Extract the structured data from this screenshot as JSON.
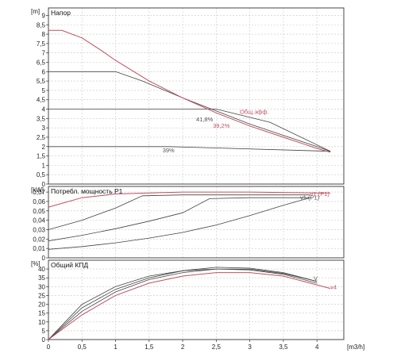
{
  "chart_data": [
    {
      "type": "line",
      "title": "Напор",
      "ylabel": "[m]",
      "xlabel": "",
      "xlim": [
        0,
        4.4
      ],
      "ylim": [
        0,
        9.4
      ],
      "yticks": [
        0,
        0.5,
        1,
        1.5,
        2,
        2.5,
        3,
        3.5,
        4,
        4.5,
        5,
        5.5,
        6,
        6.5,
        7,
        7.5,
        8,
        8.5,
        9
      ],
      "ytick_labels": [
        "0",
        "0,5",
        "1",
        "1,5",
        "2",
        "2,5",
        "3",
        "3,5",
        "4",
        "4,5",
        "5",
        "5,5",
        "6",
        "6,5",
        "7",
        "7,5",
        "8",
        "8,5",
        "9"
      ],
      "grid": true,
      "colors": {
        "dark": "#444444",
        "red": "#c05060"
      },
      "series": [
        {
          "style": "dark",
          "x": [
            0,
            1.8,
            4.2
          ],
          "y": [
            2.0,
            2.0,
            1.75
          ]
        },
        {
          "style": "dark",
          "x": [
            0,
            2.5,
            3.3,
            4.2
          ],
          "y": [
            4.0,
            4.0,
            3.3,
            1.75
          ]
        },
        {
          "style": "dark",
          "x": [
            0,
            1.0,
            1.4,
            2.0,
            2.5,
            3.0,
            3.5,
            4.0,
            4.2
          ],
          "y": [
            6.0,
            6.0,
            5.5,
            4.6,
            3.9,
            3.2,
            2.6,
            2.0,
            1.75
          ]
        },
        {
          "style": "red",
          "x": [
            0,
            0.2,
            0.5,
            0.8,
            1.0,
            1.5,
            2.0,
            2.5,
            3.0,
            3.5,
            4.0,
            4.2
          ],
          "y": [
            8.2,
            8.2,
            7.8,
            7.1,
            6.6,
            5.5,
            4.6,
            3.8,
            3.1,
            2.5,
            1.9,
            1.7
          ]
        }
      ],
      "annotations": [
        {
          "text": "Общ.эфф.",
          "x": 2.85,
          "y": 3.75,
          "style": "red"
        },
        {
          "text": "41,8%",
          "x": 2.2,
          "y": 3.35,
          "style": "dark"
        },
        {
          "text": "39,2%",
          "x": 2.45,
          "y": 3.0,
          "style": "red"
        },
        {
          "text": "39%",
          "x": 1.7,
          "y": 1.7,
          "style": "dark"
        }
      ]
    },
    {
      "type": "line",
      "title": "Потребл. мощность P1",
      "ylabel": "[kW]",
      "xlabel": "",
      "xlim": [
        0,
        4.4
      ],
      "ylim": [
        0,
        0.076
      ],
      "yticks": [
        0,
        0.01,
        0.02,
        0.03,
        0.04,
        0.05,
        0.06,
        0.07
      ],
      "ytick_labels": [
        "0",
        "0,01",
        "0,02",
        "0,03",
        "0,04",
        "0,05",
        "0,06",
        "0,07"
      ],
      "grid": true,
      "series": [
        {
          "style": "dark",
          "x": [
            0,
            0.5,
            1.0,
            1.5,
            2.0,
            2.5,
            3.0,
            3.5,
            3.9
          ],
          "y": [
            0.009,
            0.012,
            0.016,
            0.021,
            0.027,
            0.035,
            0.045,
            0.056,
            0.064
          ]
        },
        {
          "style": "dark",
          "x": [
            0,
            0.5,
            1.0,
            1.5,
            2.0,
            2.4,
            3.0,
            3.9
          ],
          "y": [
            0.018,
            0.024,
            0.031,
            0.039,
            0.048,
            0.063,
            0.064,
            0.064
          ]
        },
        {
          "style": "dark",
          "x": [
            0,
            0.5,
            1.0,
            1.4,
            2.0,
            3.9
          ],
          "y": [
            0.03,
            0.04,
            0.053,
            0.066,
            0.067,
            0.067
          ]
        },
        {
          "style": "red",
          "x": [
            0,
            0.5,
            1.0,
            1.5,
            2.0,
            3.0,
            4.0,
            4.2
          ],
          "y": [
            0.054,
            0.064,
            0.068,
            0.069,
            0.07,
            0.07,
            0.069,
            0.069
          ]
        }
      ],
      "annotations": [
        {
          "text": "v1 (P1)",
          "x": 3.9,
          "y": 0.066,
          "style": "red"
        },
        {
          "text": "v1 (P1)",
          "x": 3.75,
          "y": 0.062,
          "style": "dark"
        }
      ]
    },
    {
      "type": "line",
      "title": "Общий КПД",
      "ylabel": "[%]",
      "xlabel": "[m3/h]",
      "xlim": [
        0,
        4.4
      ],
      "ylim": [
        0,
        45
      ],
      "xticks": [
        0,
        0.5,
        1,
        1.5,
        2,
        2.5,
        3,
        3.5,
        4
      ],
      "xtick_labels": [
        "0",
        "0,5",
        "1",
        "1,5",
        "2",
        "2,5",
        "3",
        "3,5",
        "4"
      ],
      "yticks": [
        0,
        5,
        10,
        15,
        20,
        25,
        30,
        35,
        40
      ],
      "ytick_labels": [
        "0",
        "5",
        "10",
        "15",
        "20",
        "25",
        "30",
        "35",
        "40"
      ],
      "grid": true,
      "series": [
        {
          "style": "dark",
          "x": [
            0,
            0.25,
            0.5,
            1.0,
            1.5,
            2.0,
            2.5,
            3.0,
            3.5,
            4.0
          ],
          "y": [
            0,
            10,
            20,
            30,
            36,
            39,
            40,
            39.5,
            37,
            32
          ]
        },
        {
          "style": "dark",
          "x": [
            0,
            0.25,
            0.5,
            1.0,
            1.5,
            2.0,
            2.5,
            3.0,
            3.5,
            4.0
          ],
          "y": [
            0,
            9,
            18,
            28.5,
            35,
            39,
            41,
            40.5,
            38,
            33
          ]
        },
        {
          "style": "dark",
          "x": [
            0,
            0.25,
            0.5,
            1.0,
            1.5,
            2.0,
            2.5,
            3.0,
            3.5,
            4.0
          ],
          "y": [
            0,
            8,
            16,
            27,
            34,
            38,
            40,
            40,
            37.5,
            33
          ]
        },
        {
          "style": "red",
          "x": [
            0,
            0.25,
            0.5,
            1.0,
            1.5,
            2.0,
            2.5,
            3.0,
            3.5,
            4.0,
            4.2
          ],
          "y": [
            0,
            7,
            14,
            25,
            32,
            36,
            38,
            38,
            36,
            31,
            29
          ]
        }
      ],
      "annotations": [
        {
          "text": "V",
          "x": 3.95,
          "y": 33.5,
          "style": "dark"
        },
        {
          "text": "v4",
          "x": 4.2,
          "y": 28.5,
          "style": "red"
        }
      ]
    }
  ]
}
